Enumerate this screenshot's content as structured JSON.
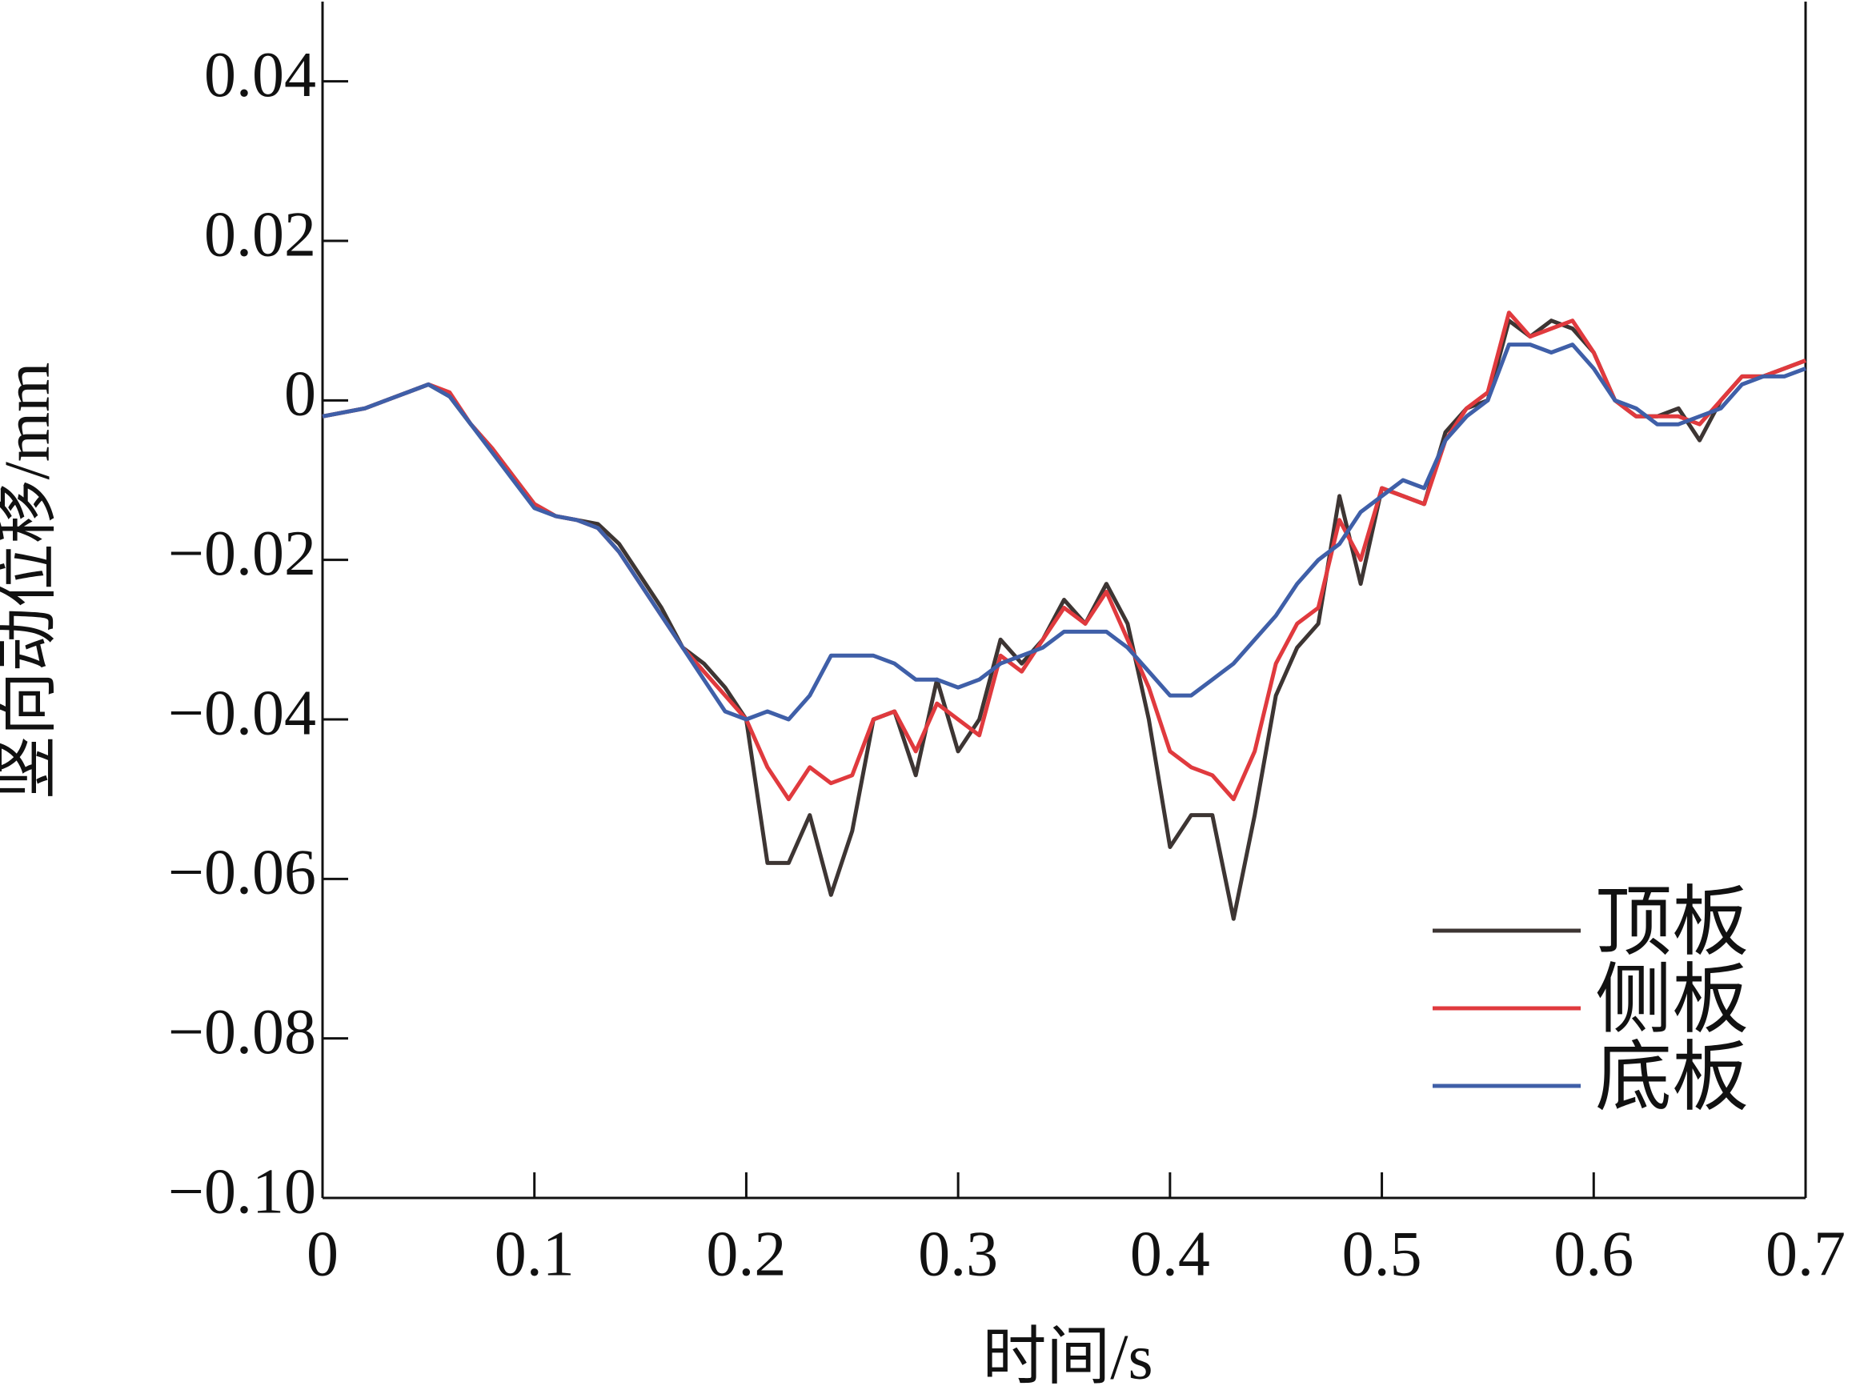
{
  "chart_data": {
    "type": "line",
    "x_label": "时间/s",
    "y_label": "竖向动位移/mm",
    "x": [
      0,
      0.01,
      0.02,
      0.03,
      0.04,
      0.05,
      0.06,
      0.07,
      0.08,
      0.09,
      0.1,
      0.11,
      0.12,
      0.13,
      0.14,
      0.15,
      0.16,
      0.17,
      0.18,
      0.19,
      0.2,
      0.21,
      0.22,
      0.23,
      0.24,
      0.25,
      0.26,
      0.27,
      0.28,
      0.29,
      0.3,
      0.31,
      0.32,
      0.33,
      0.34,
      0.35,
      0.36,
      0.37,
      0.38,
      0.39,
      0.4,
      0.41,
      0.42,
      0.43,
      0.44,
      0.45,
      0.46,
      0.47,
      0.48,
      0.49,
      0.5,
      0.51,
      0.52,
      0.53,
      0.54,
      0.55,
      0.56,
      0.57,
      0.58,
      0.59,
      0.6,
      0.61,
      0.62,
      0.63,
      0.64,
      0.65,
      0.66,
      0.67,
      0.68,
      0.69,
      0.7
    ],
    "series": [
      {
        "name": "顶板",
        "color": "#3d3533",
        "values": [
          -0.002,
          -0.0015,
          -0.001,
          0,
          0.001,
          0.002,
          0.0005,
          -0.003,
          -0.006,
          -0.0095,
          -0.013,
          -0.0145,
          -0.015,
          -0.0155,
          -0.018,
          -0.022,
          -0.026,
          -0.031,
          -0.033,
          -0.036,
          -0.04,
          -0.058,
          -0.058,
          -0.052,
          -0.062,
          -0.054,
          -0.04,
          -0.039,
          -0.047,
          -0.035,
          -0.044,
          -0.04,
          -0.03,
          -0.033,
          -0.03,
          -0.025,
          -0.028,
          -0.023,
          -0.028,
          -0.04,
          -0.056,
          -0.052,
          -0.052,
          -0.065,
          -0.052,
          -0.037,
          -0.031,
          -0.028,
          -0.012,
          -0.023,
          -0.011,
          -0.012,
          -0.013,
          -0.004,
          -0.001,
          0,
          0.01,
          0.008,
          0.01,
          0.009,
          0.006,
          0,
          -0.002,
          -0.002,
          -0.001,
          -0.005,
          0,
          0.003,
          0.003,
          0.004,
          0.005
        ]
      },
      {
        "name": "侧板",
        "color": "#e03a3e",
        "values": [
          -0.002,
          -0.0015,
          -0.001,
          0,
          0.001,
          0.002,
          0.001,
          -0.003,
          -0.006,
          -0.0095,
          -0.013,
          -0.0145,
          -0.015,
          -0.016,
          -0.019,
          -0.023,
          -0.027,
          -0.031,
          -0.034,
          -0.037,
          -0.04,
          -0.046,
          -0.05,
          -0.046,
          -0.048,
          -0.047,
          -0.04,
          -0.039,
          -0.044,
          -0.038,
          -0.04,
          -0.042,
          -0.032,
          -0.034,
          -0.03,
          -0.026,
          -0.028,
          -0.024,
          -0.03,
          -0.036,
          -0.044,
          -0.046,
          -0.047,
          -0.05,
          -0.044,
          -0.033,
          -0.028,
          -0.026,
          -0.015,
          -0.02,
          -0.011,
          -0.012,
          -0.013,
          -0.005,
          -0.001,
          0.001,
          0.011,
          0.008,
          0.009,
          0.01,
          0.006,
          0,
          -0.002,
          -0.002,
          -0.002,
          -0.003,
          0,
          0.003,
          0.003,
          0.004,
          0.005
        ]
      },
      {
        "name": "底板",
        "color": "#3f5fa8",
        "values": [
          -0.002,
          -0.0015,
          -0.001,
          0,
          0.001,
          0.002,
          0.0005,
          -0.003,
          -0.0065,
          -0.01,
          -0.0135,
          -0.0145,
          -0.015,
          -0.016,
          -0.019,
          -0.023,
          -0.027,
          -0.031,
          -0.035,
          -0.039,
          -0.04,
          -0.039,
          -0.04,
          -0.037,
          -0.032,
          -0.032,
          -0.032,
          -0.033,
          -0.035,
          -0.035,
          -0.036,
          -0.035,
          -0.033,
          -0.032,
          -0.031,
          -0.029,
          -0.029,
          -0.029,
          -0.031,
          -0.034,
          -0.037,
          -0.037,
          -0.035,
          -0.033,
          -0.03,
          -0.027,
          -0.023,
          -0.02,
          -0.018,
          -0.014,
          -0.012,
          -0.01,
          -0.011,
          -0.005,
          -0.002,
          0,
          0.007,
          0.007,
          0.006,
          0.007,
          0.004,
          0,
          -0.001,
          -0.003,
          -0.003,
          -0.002,
          -0.001,
          0.002,
          0.003,
          0.003,
          0.004
        ]
      }
    ],
    "xlim": [
      0,
      0.7
    ],
    "xticks": [
      0,
      0.1,
      0.2,
      0.3,
      0.4,
      0.5,
      0.6,
      0.7
    ],
    "ylim": [
      -0.1,
      0.05
    ],
    "yticks": [
      {
        "value": -0.1,
        "label": "−0.10"
      },
      {
        "value": -0.08,
        "label": "−0.08"
      },
      {
        "value": -0.06,
        "label": "−0.06"
      },
      {
        "value": -0.04,
        "label": "−0.04"
      },
      {
        "value": -0.02,
        "label": "−0.02"
      },
      0,
      0.02,
      0.04
    ],
    "grid": false,
    "legend": "lower right"
  }
}
